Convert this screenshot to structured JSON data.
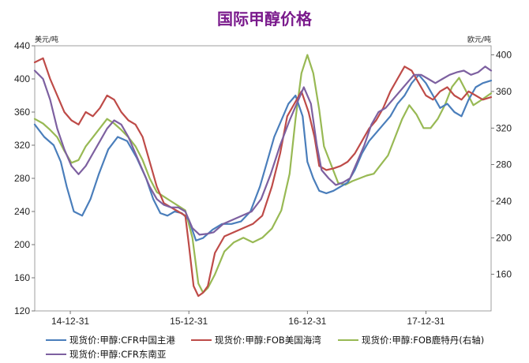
{
  "chart_data": {
    "type": "line",
    "title": "国际甲醇价格",
    "y_left_unit": "美元/吨",
    "y_right_unit": "欧元/吨",
    "ylim_left": [
      120,
      440
    ],
    "ylim_right": [
      120,
      410
    ],
    "yticks_left": [
      120,
      160,
      200,
      240,
      280,
      320,
      360,
      400,
      440
    ],
    "yticks_right": [
      160,
      200,
      240,
      280,
      320,
      360,
      400
    ],
    "x_tick_labels": [
      "14-12-31",
      "15-12-31",
      "16-12-31",
      "17-12-31"
    ],
    "x_tick_positions": [
      0.5,
      1.5,
      2.5,
      3.5
    ],
    "x_range": [
      0.2,
      4.05
    ],
    "grid": false,
    "legend_position": "bottom",
    "series": [
      {
        "name": "现货价:甲醇:CFR中国主港",
        "axis": "left",
        "color": "#4a7ebb",
        "points": [
          [
            0.2,
            345
          ],
          [
            0.28,
            330
          ],
          [
            0.36,
            320
          ],
          [
            0.42,
            300
          ],
          [
            0.47,
            270
          ],
          [
            0.53,
            240
          ],
          [
            0.6,
            235
          ],
          [
            0.67,
            255
          ],
          [
            0.74,
            285
          ],
          [
            0.82,
            315
          ],
          [
            0.9,
            330
          ],
          [
            0.98,
            325
          ],
          [
            1.06,
            305
          ],
          [
            1.14,
            280
          ],
          [
            1.2,
            255
          ],
          [
            1.26,
            238
          ],
          [
            1.32,
            235
          ],
          [
            1.38,
            240
          ],
          [
            1.44,
            238
          ],
          [
            1.5,
            230
          ],
          [
            1.56,
            205
          ],
          [
            1.62,
            208
          ],
          [
            1.7,
            218
          ],
          [
            1.78,
            225
          ],
          [
            1.86,
            225
          ],
          [
            1.94,
            228
          ],
          [
            2.02,
            240
          ],
          [
            2.1,
            270
          ],
          [
            2.16,
            300
          ],
          [
            2.22,
            330
          ],
          [
            2.28,
            350
          ],
          [
            2.34,
            370
          ],
          [
            2.4,
            380
          ],
          [
            2.46,
            355
          ],
          [
            2.5,
            300
          ],
          [
            2.55,
            280
          ],
          [
            2.6,
            265
          ],
          [
            2.66,
            262
          ],
          [
            2.72,
            265
          ],
          [
            2.78,
            270
          ],
          [
            2.84,
            275
          ],
          [
            2.9,
            290
          ],
          [
            2.96,
            310
          ],
          [
            3.02,
            325
          ],
          [
            3.08,
            335
          ],
          [
            3.14,
            345
          ],
          [
            3.2,
            355
          ],
          [
            3.26,
            370
          ],
          [
            3.32,
            380
          ],
          [
            3.38,
            395
          ],
          [
            3.44,
            405
          ],
          [
            3.5,
            395
          ],
          [
            3.56,
            380
          ],
          [
            3.62,
            365
          ],
          [
            3.68,
            370
          ],
          [
            3.74,
            360
          ],
          [
            3.8,
            355
          ],
          [
            3.86,
            375
          ],
          [
            3.92,
            390
          ],
          [
            3.98,
            395
          ],
          [
            4.05,
            398
          ]
        ]
      },
      {
        "name": "现货价:甲醇:FOB美国海湾",
        "axis": "left",
        "color": "#be4b48",
        "points": [
          [
            0.2,
            420
          ],
          [
            0.27,
            425
          ],
          [
            0.33,
            400
          ],
          [
            0.39,
            380
          ],
          [
            0.45,
            360
          ],
          [
            0.51,
            350
          ],
          [
            0.57,
            345
          ],
          [
            0.63,
            360
          ],
          [
            0.69,
            355
          ],
          [
            0.75,
            365
          ],
          [
            0.81,
            380
          ],
          [
            0.87,
            375
          ],
          [
            0.93,
            360
          ],
          [
            0.99,
            350
          ],
          [
            1.05,
            345
          ],
          [
            1.11,
            330
          ],
          [
            1.17,
            300
          ],
          [
            1.23,
            270
          ],
          [
            1.29,
            250
          ],
          [
            1.35,
            245
          ],
          [
            1.41,
            240
          ],
          [
            1.47,
            235
          ],
          [
            1.5,
            200
          ],
          [
            1.54,
            150
          ],
          [
            1.58,
            138
          ],
          [
            1.62,
            142
          ],
          [
            1.66,
            150
          ],
          [
            1.72,
            190
          ],
          [
            1.8,
            210
          ],
          [
            1.88,
            215
          ],
          [
            1.96,
            220
          ],
          [
            2.04,
            225
          ],
          [
            2.12,
            235
          ],
          [
            2.2,
            270
          ],
          [
            2.27,
            310
          ],
          [
            2.33,
            355
          ],
          [
            2.39,
            370
          ],
          [
            2.45,
            385
          ],
          [
            2.51,
            360
          ],
          [
            2.56,
            330
          ],
          [
            2.6,
            295
          ],
          [
            2.66,
            290
          ],
          [
            2.72,
            292
          ],
          [
            2.78,
            295
          ],
          [
            2.84,
            300
          ],
          [
            2.9,
            310
          ],
          [
            2.96,
            325
          ],
          [
            3.02,
            340
          ],
          [
            3.08,
            350
          ],
          [
            3.14,
            365
          ],
          [
            3.2,
            385
          ],
          [
            3.26,
            400
          ],
          [
            3.32,
            415
          ],
          [
            3.38,
            410
          ],
          [
            3.44,
            395
          ],
          [
            3.5,
            380
          ],
          [
            3.56,
            375
          ],
          [
            3.62,
            385
          ],
          [
            3.68,
            390
          ],
          [
            3.74,
            380
          ],
          [
            3.8,
            375
          ],
          [
            3.86,
            385
          ],
          [
            3.92,
            380
          ],
          [
            3.98,
            375
          ],
          [
            4.05,
            378
          ]
        ]
      },
      {
        "name": "现货价:甲醇:FOB鹿特丹(右轴)",
        "axis": "right",
        "color": "#98b954",
        "points": [
          [
            0.2,
            330
          ],
          [
            0.27,
            325
          ],
          [
            0.33,
            318
          ],
          [
            0.39,
            310
          ],
          [
            0.45,
            295
          ],
          [
            0.51,
            282
          ],
          [
            0.57,
            285
          ],
          [
            0.63,
            300
          ],
          [
            0.69,
            310
          ],
          [
            0.75,
            320
          ],
          [
            0.81,
            330
          ],
          [
            0.87,
            325
          ],
          [
            0.93,
            318
          ],
          [
            0.99,
            310
          ],
          [
            1.05,
            300
          ],
          [
            1.11,
            285
          ],
          [
            1.17,
            265
          ],
          [
            1.23,
            250
          ],
          [
            1.29,
            245
          ],
          [
            1.35,
            240
          ],
          [
            1.41,
            235
          ],
          [
            1.47,
            230
          ],
          [
            1.53,
            200
          ],
          [
            1.58,
            150
          ],
          [
            1.62,
            140
          ],
          [
            1.66,
            145
          ],
          [
            1.72,
            160
          ],
          [
            1.8,
            185
          ],
          [
            1.88,
            195
          ],
          [
            1.96,
            200
          ],
          [
            2.04,
            195
          ],
          [
            2.12,
            200
          ],
          [
            2.2,
            210
          ],
          [
            2.28,
            230
          ],
          [
            2.35,
            270
          ],
          [
            2.4,
            330
          ],
          [
            2.45,
            380
          ],
          [
            2.5,
            400
          ],
          [
            2.55,
            380
          ],
          [
            2.6,
            340
          ],
          [
            2.64,
            300
          ],
          [
            2.7,
            280
          ],
          [
            2.76,
            260
          ],
          [
            2.82,
            258
          ],
          [
            2.88,
            262
          ],
          [
            2.94,
            265
          ],
          [
            3.0,
            268
          ],
          [
            3.06,
            270
          ],
          [
            3.12,
            280
          ],
          [
            3.18,
            290
          ],
          [
            3.24,
            310
          ],
          [
            3.3,
            330
          ],
          [
            3.36,
            345
          ],
          [
            3.42,
            335
          ],
          [
            3.48,
            320
          ],
          [
            3.54,
            320
          ],
          [
            3.6,
            330
          ],
          [
            3.66,
            345
          ],
          [
            3.72,
            365
          ],
          [
            3.78,
            375
          ],
          [
            3.84,
            360
          ],
          [
            3.9,
            345
          ],
          [
            3.96,
            350
          ],
          [
            4.05,
            358
          ]
        ]
      },
      {
        "name": "现货价:甲醇:CFR东南亚",
        "axis": "left",
        "color": "#7d60a0",
        "points": [
          [
            0.2,
            410
          ],
          [
            0.27,
            400
          ],
          [
            0.33,
            375
          ],
          [
            0.39,
            340
          ],
          [
            0.45,
            315
          ],
          [
            0.51,
            295
          ],
          [
            0.57,
            285
          ],
          [
            0.63,
            295
          ],
          [
            0.69,
            310
          ],
          [
            0.75,
            325
          ],
          [
            0.81,
            340
          ],
          [
            0.87,
            350
          ],
          [
            0.93,
            345
          ],
          [
            0.99,
            330
          ],
          [
            1.05,
            310
          ],
          [
            1.11,
            290
          ],
          [
            1.17,
            270
          ],
          [
            1.23,
            255
          ],
          [
            1.29,
            248
          ],
          [
            1.35,
            245
          ],
          [
            1.41,
            245
          ],
          [
            1.47,
            240
          ],
          [
            1.53,
            220
          ],
          [
            1.59,
            212
          ],
          [
            1.65,
            213
          ],
          [
            1.71,
            215
          ],
          [
            1.79,
            225
          ],
          [
            1.87,
            230
          ],
          [
            1.95,
            235
          ],
          [
            2.03,
            240
          ],
          [
            2.11,
            255
          ],
          [
            2.19,
            285
          ],
          [
            2.27,
            320
          ],
          [
            2.35,
            350
          ],
          [
            2.41,
            370
          ],
          [
            2.47,
            390
          ],
          [
            2.53,
            370
          ],
          [
            2.58,
            320
          ],
          [
            2.62,
            290
          ],
          [
            2.68,
            280
          ],
          [
            2.74,
            272
          ],
          [
            2.8,
            275
          ],
          [
            2.86,
            280
          ],
          [
            2.92,
            300
          ],
          [
            2.98,
            320
          ],
          [
            3.04,
            345
          ],
          [
            3.1,
            360
          ],
          [
            3.16,
            365
          ],
          [
            3.22,
            375
          ],
          [
            3.28,
            385
          ],
          [
            3.34,
            395
          ],
          [
            3.4,
            405
          ],
          [
            3.46,
            405
          ],
          [
            3.52,
            400
          ],
          [
            3.58,
            395
          ],
          [
            3.64,
            400
          ],
          [
            3.7,
            405
          ],
          [
            3.76,
            408
          ],
          [
            3.82,
            410
          ],
          [
            3.88,
            405
          ],
          [
            3.94,
            408
          ],
          [
            4.0,
            415
          ],
          [
            4.05,
            410
          ]
        ]
      }
    ]
  }
}
